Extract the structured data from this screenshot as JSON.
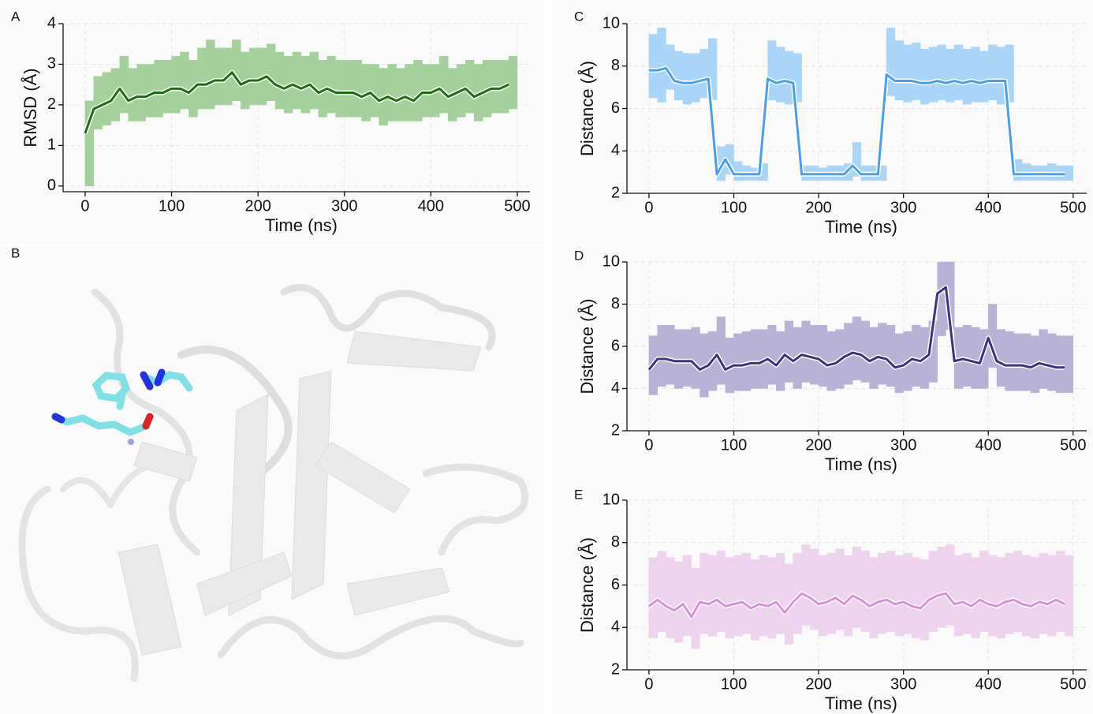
{
  "image_panel": {
    "label": "B"
  },
  "chart_data": [
    {
      "panel_label": "A",
      "type": "line",
      "xlabel": "Time (ns)",
      "ylabel": "RMSD (Å)",
      "x": [
        0,
        10,
        20,
        30,
        40,
        50,
        60,
        70,
        80,
        90,
        100,
        110,
        120,
        130,
        140,
        150,
        160,
        170,
        180,
        190,
        200,
        210,
        220,
        230,
        240,
        250,
        260,
        270,
        280,
        290,
        300,
        310,
        320,
        330,
        340,
        350,
        360,
        370,
        380,
        390,
        400,
        410,
        420,
        430,
        440,
        450,
        460,
        470,
        480,
        490
      ],
      "series": [
        {
          "color": "#1f6b12",
          "values": [
            1.3,
            1.9,
            2.0,
            2.1,
            2.4,
            2.1,
            2.2,
            2.2,
            2.3,
            2.3,
            2.4,
            2.4,
            2.3,
            2.5,
            2.5,
            2.6,
            2.6,
            2.8,
            2.5,
            2.6,
            2.6,
            2.7,
            2.5,
            2.4,
            2.5,
            2.4,
            2.5,
            2.3,
            2.4,
            2.3,
            2.3,
            2.3,
            2.2,
            2.3,
            2.1,
            2.2,
            2.1,
            2.2,
            2.1,
            2.3,
            2.3,
            2.4,
            2.2,
            2.3,
            2.4,
            2.2,
            2.3,
            2.4,
            2.4,
            2.5
          ]
        }
      ],
      "range": {
        "color": "#a3d09b",
        "low": [
          0,
          1.4,
          1.5,
          1.6,
          1.8,
          1.6,
          1.6,
          1.7,
          1.7,
          1.8,
          1.8,
          1.9,
          1.7,
          1.9,
          1.9,
          2.0,
          2.0,
          2.1,
          1.9,
          2.0,
          2.0,
          2.1,
          1.9,
          1.8,
          1.9,
          1.8,
          1.9,
          1.7,
          1.8,
          1.7,
          1.7,
          1.7,
          1.6,
          1.7,
          1.5,
          1.6,
          1.6,
          1.6,
          1.6,
          1.7,
          1.7,
          1.8,
          1.6,
          1.7,
          1.8,
          1.6,
          1.7,
          1.8,
          1.8,
          1.9
        ],
        "high": [
          2.1,
          2.7,
          2.8,
          2.9,
          3.2,
          2.9,
          3.0,
          3.0,
          3.1,
          3.1,
          3.2,
          3.3,
          3.1,
          3.4,
          3.6,
          3.4,
          3.4,
          3.6,
          3.3,
          3.4,
          3.4,
          3.5,
          3.3,
          3.2,
          3.3,
          3.2,
          3.3,
          3.1,
          3.2,
          3.1,
          3.1,
          3.1,
          3.0,
          3.0,
          2.9,
          3.0,
          2.9,
          3.0,
          3.1,
          3.0,
          3.0,
          3.2,
          2.9,
          3.0,
          3.1,
          3.0,
          3.1,
          3.1,
          3.1,
          3.2
        ]
      },
      "xlim": [
        -25.5,
        514.6
      ],
      "ylim": [
        -0.14,
        4.0
      ],
      "xticks": [
        0,
        100,
        200,
        300,
        400,
        500
      ],
      "yticks": [
        0,
        1,
        2,
        3,
        4
      ],
      "grid": true
    },
    {
      "panel_label": "C",
      "type": "line",
      "xlabel": "Time (ns)",
      "ylabel": "Distance (Å)",
      "x": [
        0,
        10,
        20,
        30,
        40,
        50,
        60,
        70,
        80,
        90,
        100,
        110,
        120,
        130,
        140,
        150,
        160,
        170,
        180,
        190,
        200,
        210,
        220,
        230,
        240,
        250,
        260,
        270,
        280,
        290,
        300,
        310,
        320,
        330,
        340,
        350,
        360,
        370,
        380,
        390,
        400,
        410,
        420,
        430,
        440,
        450,
        460,
        470,
        480,
        490
      ],
      "series": [
        {
          "color": "#4a9ef0",
          "values": [
            7.8,
            7.8,
            7.9,
            7.3,
            7.2,
            7.2,
            7.3,
            7.4,
            2.9,
            3.6,
            2.9,
            2.9,
            2.9,
            2.9,
            7.4,
            7.2,
            7.3,
            7.2,
            2.9,
            2.9,
            2.9,
            2.9,
            2.9,
            2.9,
            3.3,
            2.9,
            2.9,
            2.9,
            7.6,
            7.3,
            7.3,
            7.3,
            7.2,
            7.2,
            7.3,
            7.2,
            7.3,
            7.2,
            7.3,
            7.2,
            7.3,
            7.3,
            7.3,
            2.9,
            2.9,
            2.9,
            2.9,
            2.9,
            2.9,
            2.9
          ]
        }
      ],
      "range": {
        "color": "#a9d5f8",
        "low": [
          6.5,
          6.3,
          6.9,
          6.4,
          6.2,
          6.3,
          6.5,
          6.4,
          2.6,
          2.9,
          2.6,
          2.6,
          2.6,
          2.6,
          6.4,
          6.3,
          6.2,
          6.3,
          2.6,
          2.6,
          2.6,
          2.6,
          2.6,
          2.6,
          2.8,
          2.6,
          2.6,
          2.6,
          6.6,
          6.4,
          6.3,
          6.4,
          6.2,
          6.3,
          6.4,
          6.3,
          6.4,
          6.2,
          6.3,
          6.3,
          6.4,
          6.2,
          6.3,
          2.6,
          2.6,
          2.6,
          2.6,
          2.6,
          2.6,
          2.6
        ],
        "high": [
          9.5,
          9.8,
          9.0,
          8.7,
          8.6,
          8.6,
          8.8,
          9.3,
          4.2,
          4.3,
          3.5,
          3.3,
          3.2,
          3.4,
          9.2,
          8.9,
          8.7,
          8.6,
          3.3,
          3.3,
          3.2,
          3.3,
          3.3,
          3.4,
          4.4,
          3.3,
          3.3,
          3.3,
          9.8,
          9.2,
          9.0,
          9.1,
          8.8,
          8.9,
          9.0,
          8.8,
          9.0,
          8.8,
          8.9,
          8.7,
          9.0,
          8.9,
          9.0,
          3.6,
          3.4,
          3.3,
          3.3,
          3.4,
          3.3,
          3.3
        ]
      },
      "xlim": [
        -26,
        516
      ],
      "ylim": [
        2,
        10
      ],
      "xticks": [
        0,
        100,
        200,
        300,
        400,
        500
      ],
      "yticks": [
        2,
        4,
        6,
        8,
        10
      ],
      "grid": true
    },
    {
      "panel_label": "D",
      "type": "line",
      "xlabel": "Time (ns)",
      "ylabel": "Distance (Å)",
      "x": [
        0,
        10,
        20,
        30,
        40,
        50,
        60,
        70,
        80,
        90,
        100,
        110,
        120,
        130,
        140,
        150,
        160,
        170,
        180,
        190,
        200,
        210,
        220,
        230,
        240,
        250,
        260,
        270,
        280,
        290,
        300,
        310,
        320,
        330,
        340,
        350,
        360,
        370,
        380,
        390,
        400,
        410,
        420,
        430,
        440,
        450,
        460,
        470,
        480,
        490
      ],
      "series": [
        {
          "color": "#3b3282",
          "values": [
            4.9,
            5.4,
            5.4,
            5.3,
            5.3,
            5.3,
            4.9,
            5.1,
            5.6,
            4.9,
            5.1,
            5.1,
            5.2,
            5.2,
            5.4,
            5.1,
            5.6,
            5.3,
            5.6,
            5.5,
            5.4,
            5.1,
            5.2,
            5.5,
            5.7,
            5.6,
            5.3,
            5.5,
            5.4,
            5.0,
            5.1,
            5.4,
            5.3,
            5.6,
            8.5,
            8.8,
            5.3,
            5.4,
            5.3,
            5.2,
            6.4,
            5.3,
            5.1,
            5.1,
            5.1,
            5.0,
            5.2,
            5.1,
            5.0,
            5.0
          ]
        }
      ],
      "range": {
        "color": "#b9b2d6",
        "low": [
          3.7,
          4.1,
          4.2,
          4.0,
          4.1,
          4.0,
          3.6,
          3.9,
          4.2,
          3.8,
          3.9,
          3.9,
          4.0,
          4.0,
          4.2,
          3.9,
          4.3,
          4.0,
          4.3,
          4.2,
          4.1,
          3.9,
          4.0,
          4.2,
          4.4,
          4.3,
          4.0,
          4.2,
          4.1,
          3.8,
          3.9,
          4.1,
          4.0,
          4.3,
          6.5,
          6.8,
          4.0,
          4.1,
          4.0,
          4.0,
          5.0,
          4.1,
          3.9,
          3.9,
          3.9,
          3.8,
          4.0,
          3.9,
          3.8,
          3.8
        ],
        "high": [
          6.5,
          7.0,
          7.0,
          6.8,
          6.8,
          6.9,
          6.6,
          6.7,
          7.4,
          6.4,
          6.6,
          6.7,
          6.8,
          6.8,
          7.0,
          6.7,
          7.2,
          6.9,
          7.2,
          7.0,
          7.0,
          6.7,
          6.8,
          7.1,
          7.4,
          7.2,
          6.9,
          7.1,
          7.0,
          6.6,
          6.7,
          7.0,
          6.9,
          7.2,
          10,
          10,
          6.9,
          7.0,
          6.9,
          6.8,
          8.0,
          6.8,
          6.7,
          6.6,
          6.6,
          6.5,
          6.8,
          6.6,
          6.5,
          6.5
        ]
      },
      "xlim": [
        -26,
        516
      ],
      "ylim": [
        2,
        10
      ],
      "xticks": [
        0,
        100,
        200,
        300,
        400,
        500
      ],
      "yticks": [
        2,
        4,
        6,
        8,
        10
      ],
      "grid": true
    },
    {
      "panel_label": "E",
      "type": "line",
      "xlabel": "Time (ns)",
      "ylabel": "Distance (Å)",
      "x": [
        0,
        10,
        20,
        30,
        40,
        50,
        60,
        70,
        80,
        90,
        100,
        110,
        120,
        130,
        140,
        150,
        160,
        170,
        180,
        190,
        200,
        210,
        220,
        230,
        240,
        250,
        260,
        270,
        280,
        290,
        300,
        310,
        320,
        330,
        340,
        350,
        360,
        370,
        380,
        390,
        400,
        410,
        420,
        430,
        440,
        450,
        460,
        470,
        480,
        490
      ],
      "series": [
        {
          "color": "#d98fdb",
          "values": [
            5.0,
            5.3,
            5.0,
            4.8,
            5.1,
            4.5,
            5.2,
            5.1,
            5.3,
            5.0,
            5.1,
            5.2,
            4.9,
            5.1,
            5.0,
            5.2,
            4.7,
            5.2,
            5.6,
            5.4,
            5.1,
            5.2,
            5.4,
            5.1,
            5.5,
            5.3,
            5.0,
            5.2,
            5.3,
            5.1,
            5.2,
            5.0,
            4.9,
            5.3,
            5.5,
            5.6,
            5.1,
            5.2,
            5.0,
            5.3,
            5.1,
            5.0,
            5.2,
            5.3,
            5.1,
            5.0,
            5.2,
            5.1,
            5.3,
            5.1
          ]
        }
      ],
      "range": {
        "color": "#eed3ef",
        "low": [
          3.5,
          3.8,
          3.5,
          3.3,
          3.6,
          3.0,
          3.7,
          3.6,
          3.8,
          3.5,
          3.6,
          3.7,
          3.4,
          3.6,
          3.5,
          3.7,
          3.2,
          3.7,
          4.1,
          3.9,
          3.6,
          3.7,
          3.9,
          3.6,
          4.0,
          3.8,
          3.5,
          3.7,
          3.8,
          3.6,
          3.7,
          3.5,
          3.4,
          3.8,
          4.0,
          4.1,
          3.6,
          3.7,
          3.5,
          3.8,
          3.6,
          3.5,
          3.7,
          3.8,
          3.6,
          3.5,
          3.7,
          3.6,
          3.8,
          3.6
        ],
        "high": [
          7.3,
          7.6,
          7.3,
          7.1,
          7.4,
          6.8,
          7.5,
          7.4,
          7.6,
          7.3,
          7.4,
          7.5,
          7.2,
          7.4,
          7.3,
          7.5,
          7.0,
          7.5,
          7.9,
          7.7,
          7.4,
          7.5,
          7.7,
          7.4,
          7.8,
          7.6,
          7.3,
          7.5,
          7.6,
          7.4,
          7.5,
          7.3,
          7.2,
          7.6,
          7.8,
          7.9,
          7.4,
          7.5,
          7.3,
          7.6,
          7.4,
          7.3,
          7.5,
          7.6,
          7.4,
          7.3,
          7.5,
          7.4,
          7.6,
          7.4
        ]
      },
      "xlim": [
        -26,
        516
      ],
      "ylim": [
        2,
        10
      ],
      "xticks": [
        0,
        100,
        200,
        300,
        400,
        500
      ],
      "yticks": [
        2,
        4,
        6,
        8,
        10
      ],
      "grid": true
    }
  ]
}
